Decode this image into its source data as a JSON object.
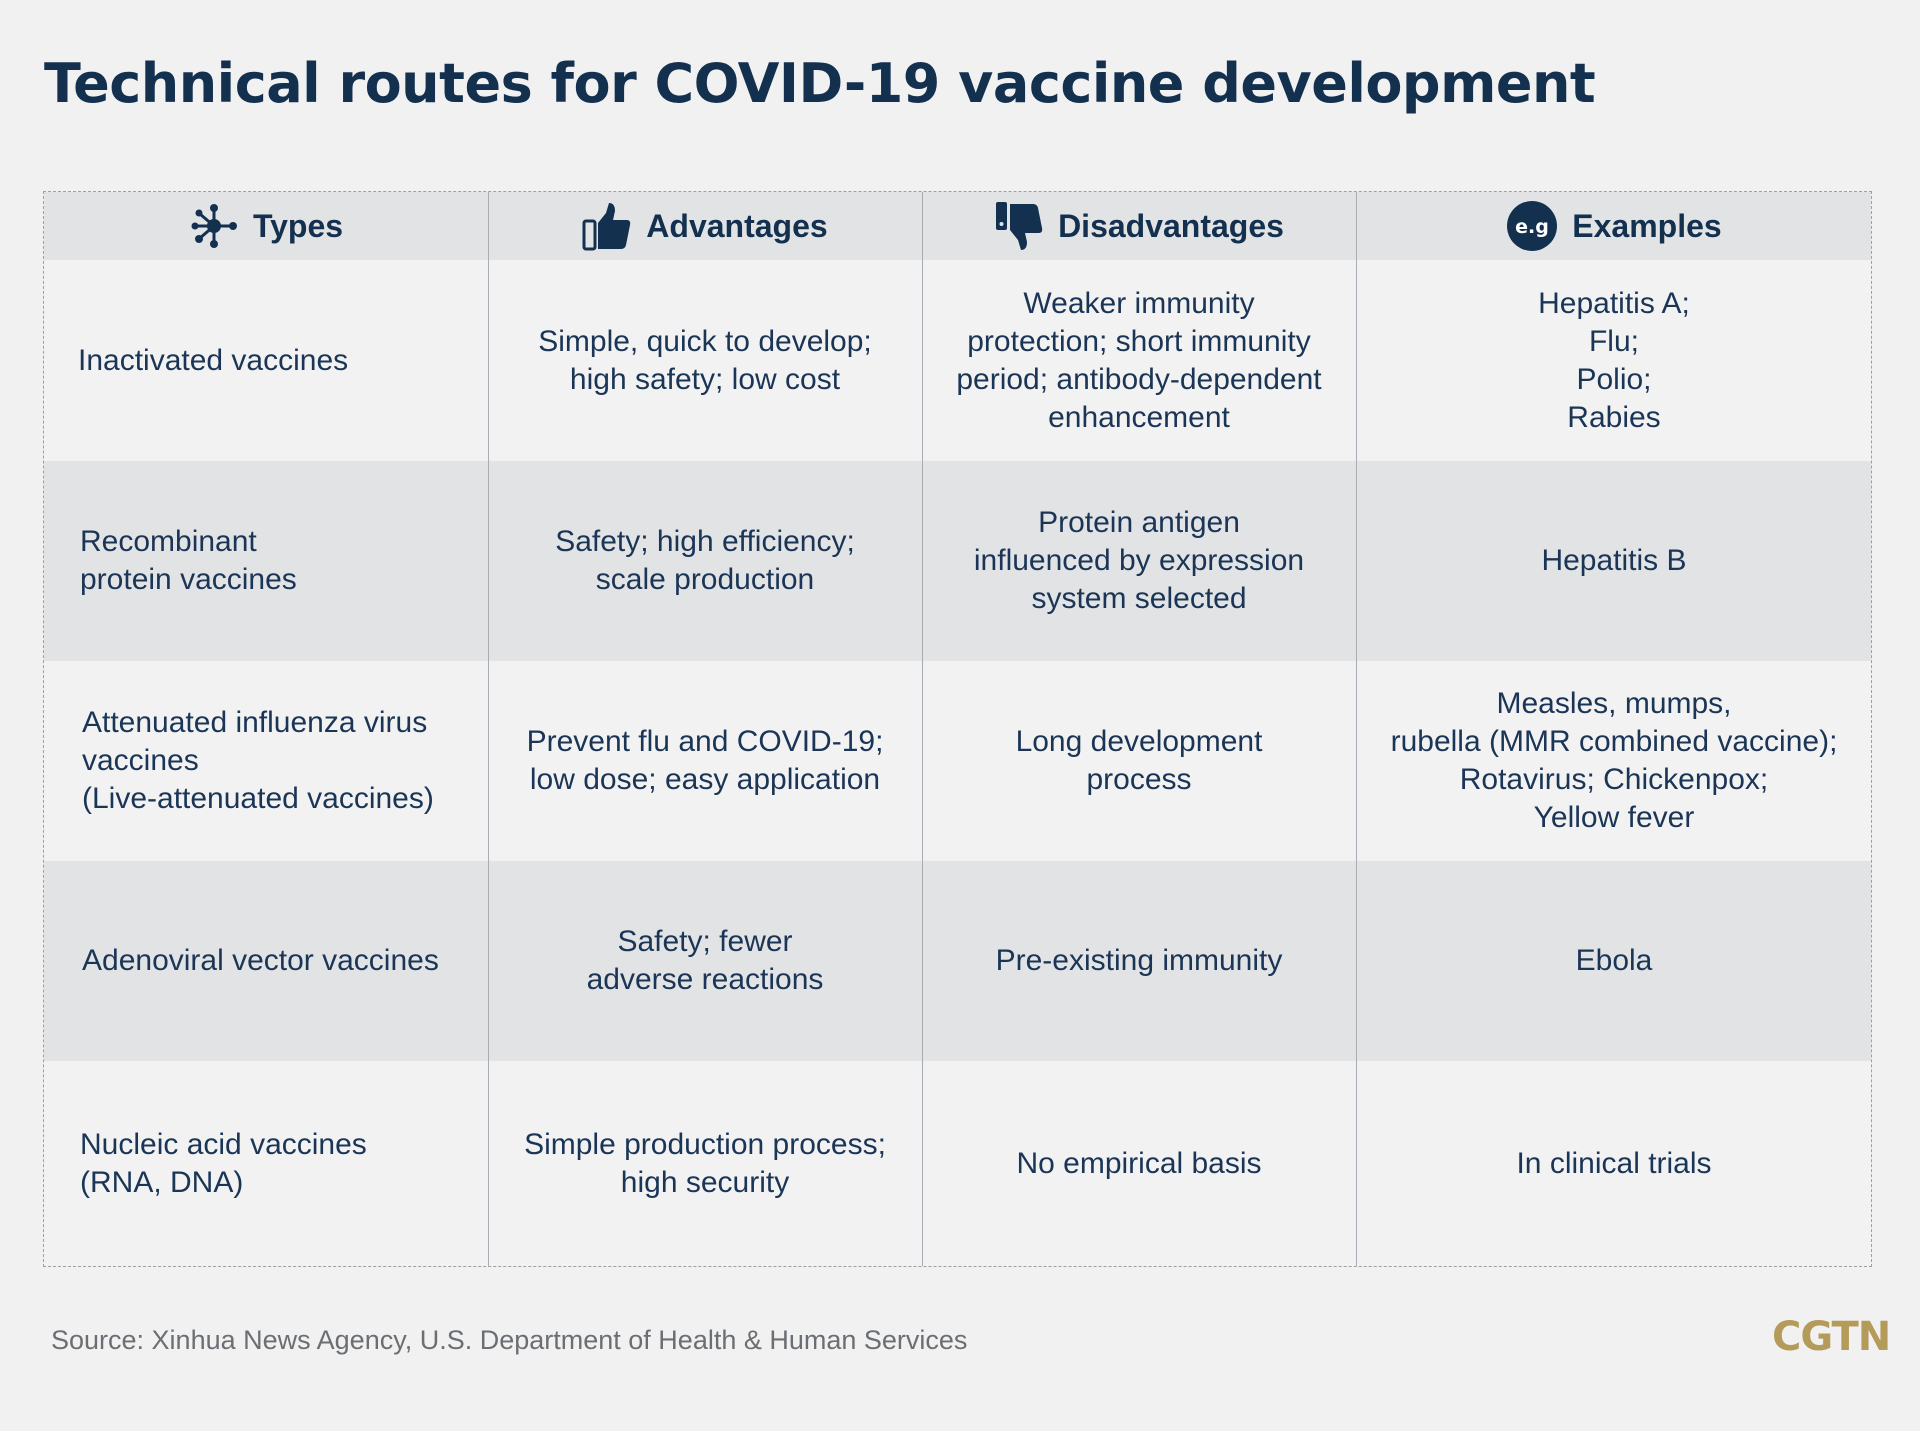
{
  "title": "Technical routes for COVID-19 vaccine development",
  "headers": {
    "types": "Types",
    "advantages": "Advantages",
    "disadvantages": "Disadvantages",
    "examples": "Examples",
    "examples_badge": "e.g"
  },
  "rows": [
    {
      "type": "Inactivated vaccines",
      "advantages": "Simple, quick to develop;\nhigh safety; low cost",
      "disadvantages": "Weaker immunity\nprotection; short immunity\nperiod; antibody-dependent\nenhancement",
      "examples": "Hepatitis A;\nFlu;\nPolio;\nRabies"
    },
    {
      "type": "Recombinant\nprotein vaccines",
      "advantages": "Safety; high efficiency;\nscale production",
      "disadvantages": "Protein antigen\ninfluenced by expression\nsystem selected",
      "examples": "Hepatitis B"
    },
    {
      "type": "Attenuated influenza virus\nvaccines\n(Live-attenuated vaccines)",
      "advantages": "Prevent flu and COVID-19;\nlow dose; easy application",
      "disadvantages": "Long development\nprocess",
      "examples": "Measles, mumps,\nrubella (MMR combined vaccine);\nRotavirus; Chickenpox;\nYellow fever"
    },
    {
      "type": "Adenoviral vector vaccines",
      "advantages": "Safety; fewer\nadverse reactions",
      "disadvantages": "Pre-existing immunity",
      "examples": "Ebola"
    },
    {
      "type": "Nucleic acid vaccines\n(RNA, DNA)",
      "advantages": "Simple production process;\nhigh security",
      "disadvantages": "No empirical basis",
      "examples": "In clinical trials"
    }
  ],
  "source": "Source: Xinhua News Agency, U.S. Department of Health & Human Services",
  "logo": "CGTN",
  "icons": {
    "types": "molecule-icon",
    "advantages": "thumbs-up-icon",
    "disadvantages": "thumbs-down-icon",
    "examples": "eg-badge-icon"
  },
  "colors": {
    "title": "#13304f",
    "text": "#1b3556",
    "header_bg": "#e2e3e5",
    "row_light": "#f2f2f2",
    "row_dark": "#e2e3e5",
    "logo": "#b49b5a"
  }
}
